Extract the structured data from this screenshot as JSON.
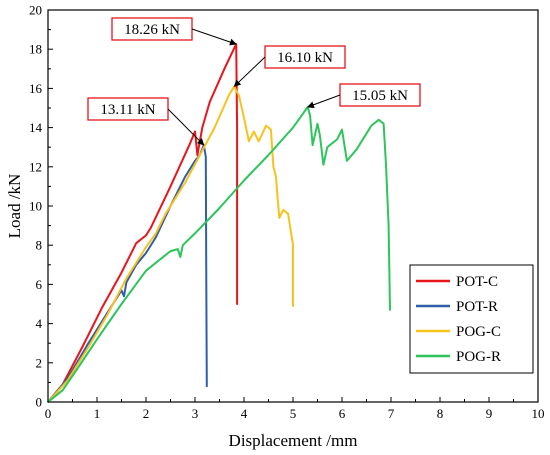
{
  "chart_data": {
    "type": "line",
    "title": "",
    "xlabel": "Displacement /mm",
    "ylabel": "Load /kN",
    "xlim": [
      0,
      10
    ],
    "ylim": [
      0,
      20
    ],
    "xticks": [
      0,
      1,
      2,
      3,
      4,
      5,
      6,
      7,
      8,
      9,
      10
    ],
    "yticks": [
      0,
      2,
      4,
      6,
      8,
      10,
      12,
      14,
      16,
      18,
      20
    ],
    "grid": false,
    "legend_position": "bottom-right",
    "series": [
      {
        "name": "POT-C",
        "color": "#e8151b",
        "points": [
          [
            0,
            0
          ],
          [
            0.3,
            0.9
          ],
          [
            0.7,
            2.8
          ],
          [
            1.1,
            4.8
          ],
          [
            1.5,
            6.6
          ],
          [
            1.8,
            8.1
          ],
          [
            2.0,
            8.5
          ],
          [
            2.1,
            8.9
          ],
          [
            2.5,
            11.0
          ],
          [
            2.9,
            13.2
          ],
          [
            3.0,
            13.8
          ],
          [
            3.05,
            12.6
          ],
          [
            3.15,
            14.0
          ],
          [
            3.3,
            15.3
          ],
          [
            3.6,
            17.0
          ],
          [
            3.84,
            18.26
          ],
          [
            3.86,
            14.0
          ],
          [
            3.86,
            5.0
          ]
        ]
      },
      {
        "name": "POT-R",
        "color": "#2f5fa8",
        "points": [
          [
            0,
            0
          ],
          [
            0.4,
            1.2
          ],
          [
            0.8,
            2.9
          ],
          [
            1.2,
            4.5
          ],
          [
            1.5,
            5.7
          ],
          [
            1.55,
            5.4
          ],
          [
            1.6,
            6.1
          ],
          [
            1.8,
            7.0
          ],
          [
            2.0,
            7.6
          ],
          [
            2.2,
            8.4
          ],
          [
            2.5,
            10.0
          ],
          [
            2.8,
            11.5
          ],
          [
            3.0,
            12.3
          ],
          [
            3.1,
            12.6
          ],
          [
            3.18,
            13.11
          ],
          [
            3.22,
            12.5
          ],
          [
            3.23,
            6.0
          ],
          [
            3.24,
            0.8
          ]
        ]
      },
      {
        "name": "POG-C",
        "color": "#f7c21e",
        "points": [
          [
            0,
            0
          ],
          [
            0.4,
            1.1
          ],
          [
            0.8,
            2.7
          ],
          [
            1.2,
            4.4
          ],
          [
            1.6,
            6.3
          ],
          [
            2.0,
            7.9
          ],
          [
            2.2,
            8.6
          ],
          [
            2.4,
            9.6
          ],
          [
            2.8,
            11.2
          ],
          [
            3.1,
            12.6
          ],
          [
            3.4,
            14.0
          ],
          [
            3.7,
            15.7
          ],
          [
            3.8,
            16.1
          ],
          [
            3.9,
            15.6
          ],
          [
            4.0,
            14.5
          ],
          [
            4.1,
            13.3
          ],
          [
            4.2,
            13.8
          ],
          [
            4.3,
            13.3
          ],
          [
            4.45,
            14.1
          ],
          [
            4.55,
            13.9
          ],
          [
            4.6,
            12.0
          ],
          [
            4.65,
            11.5
          ],
          [
            4.72,
            9.4
          ],
          [
            4.8,
            9.8
          ],
          [
            4.9,
            9.6
          ],
          [
            5.0,
            8.0
          ],
          [
            5.0,
            4.9
          ]
        ]
      },
      {
        "name": "POG-R",
        "color": "#2dc45c",
        "points": [
          [
            0,
            0
          ],
          [
            0.3,
            0.6
          ],
          [
            0.6,
            1.7
          ],
          [
            1.0,
            3.2
          ],
          [
            1.5,
            5.0
          ],
          [
            2.0,
            6.7
          ],
          [
            2.5,
            7.7
          ],
          [
            2.65,
            7.8
          ],
          [
            2.7,
            7.4
          ],
          [
            2.75,
            8.0
          ],
          [
            3.0,
            8.6
          ],
          [
            3.5,
            9.9
          ],
          [
            4.0,
            11.3
          ],
          [
            4.5,
            12.6
          ],
          [
            5.0,
            14.0
          ],
          [
            5.3,
            15.05
          ],
          [
            5.35,
            14.6
          ],
          [
            5.4,
            13.1
          ],
          [
            5.5,
            14.2
          ],
          [
            5.55,
            13.6
          ],
          [
            5.62,
            12.1
          ],
          [
            5.7,
            13.0
          ],
          [
            5.9,
            13.4
          ],
          [
            6.0,
            13.9
          ],
          [
            6.1,
            12.3
          ],
          [
            6.3,
            12.9
          ],
          [
            6.6,
            14.1
          ],
          [
            6.75,
            14.4
          ],
          [
            6.85,
            14.2
          ],
          [
            6.9,
            12.0
          ],
          [
            6.95,
            9.0
          ],
          [
            6.98,
            4.7
          ]
        ]
      }
    ],
    "annotations": [
      {
        "label": "18.26 kN",
        "x": 3.84,
        "y": 18.26
      },
      {
        "label": "16.10 kN",
        "x": 3.8,
        "y": 16.1
      },
      {
        "label": "13.11 kN",
        "x": 3.18,
        "y": 13.11
      },
      {
        "label": "15.05 kN",
        "x": 5.3,
        "y": 15.05
      }
    ]
  }
}
